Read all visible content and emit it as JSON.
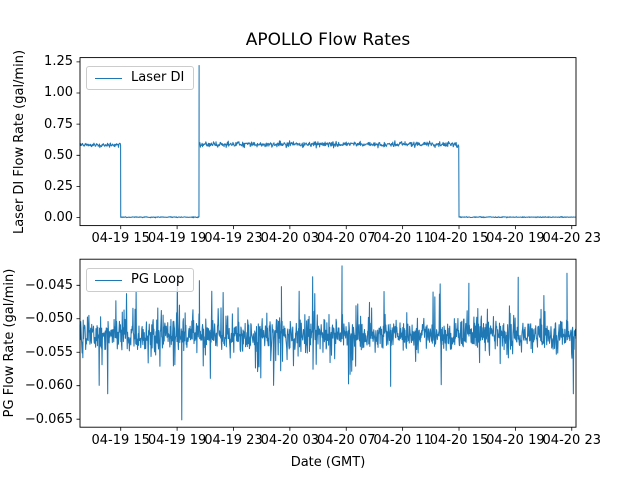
{
  "figure": {
    "title": "APOLLO Flow Rates",
    "background_color": "#ffffff",
    "series_color": "#1f77b4",
    "axis_color": "#000000"
  },
  "chart_data": [
    {
      "type": "line",
      "title": "APOLLO Flow Rates",
      "ylabel": "Laser DI Flow Rate (gal/min)",
      "xlabel": "",
      "legend": {
        "label": "Laser DI",
        "position": "upper left"
      },
      "line_color": "#1f77b4",
      "grid": false,
      "x_unit_note": "hours GMT relative to 04-19 00:00, read from shared date axis",
      "xlim": [
        12.11,
        47.3
      ],
      "ylim": [
        -0.064,
        1.284
      ],
      "yticks": [
        0.0,
        0.25,
        0.5,
        0.75,
        1.0,
        1.25
      ],
      "ytick_labels": [
        "0.00",
        "0.25",
        "0.50",
        "0.75",
        "1.00",
        "1.25"
      ],
      "xticks": [
        15,
        19,
        23,
        27,
        31,
        35,
        39,
        43,
        47
      ],
      "xtick_labels": [
        "04-19 15",
        "04-19 19",
        "04-19 23",
        "04-20 03",
        "04-20 07",
        "04-20 11",
        "04-20 15",
        "04-20 19",
        "04-20 23"
      ],
      "segments": [
        {
          "t_start": 12.11,
          "t_end": 15.0,
          "mean": 0.583,
          "noise": 0.008,
          "desc": "steady flow ~0.58 gal/min until 04-19 15:00"
        },
        {
          "t_start": 15.0,
          "t_end": 20.56,
          "mean": 0.004,
          "noise": 0.0018,
          "desc": "flow off ~0.00 gal/min"
        },
        {
          "t_start": 20.56,
          "t_end": 39.0,
          "mean": 0.588,
          "noise": 0.011,
          "desc": "steady flow ~0.59 gal/min until 04-20 15:00"
        },
        {
          "t_start": 39.0,
          "t_end": 47.3,
          "mean": 0.004,
          "noise": 0.0018,
          "desc": "flow off ~0.00 gal/min to end"
        }
      ],
      "spikes": [
        {
          "t": 20.56,
          "v": 1.22,
          "desc": "restart spike to ~1.22 gal/min at ~04-19 20:34"
        }
      ]
    },
    {
      "type": "line",
      "title": "",
      "ylabel": "PG Flow Rate (gal/min)",
      "xlabel": "Date (GMT)",
      "legend": {
        "label": "PG Loop",
        "position": "upper left"
      },
      "line_color": "#1f77b4",
      "grid": false,
      "xlim": [
        12.11,
        47.3
      ],
      "ylim": [
        -0.0662,
        -0.0411
      ],
      "yticks": [
        -0.065,
        -0.06,
        -0.055,
        -0.05,
        -0.045
      ],
      "ytick_labels": [
        "−0.065",
        "−0.060",
        "−0.055",
        "−0.050",
        "−0.045"
      ],
      "xticks": [
        15,
        19,
        23,
        27,
        31,
        35,
        39,
        43,
        47
      ],
      "xtick_labels": [
        "04-19 15",
        "04-19 19",
        "04-19 23",
        "04-20 03",
        "04-20 07",
        "04-20 11",
        "04-20 15",
        "04-20 19",
        "04-20 23"
      ],
      "noise_band": {
        "mean": -0.0525,
        "sigma": 0.0011,
        "spike_prob": 0.22,
        "spike_scale": 0.002,
        "up_clamp": -0.0437,
        "down_clamp": -0.0612,
        "desc": "dense noisy band ~-0.049 to -0.056 gal/min over whole span"
      },
      "spikes": [
        {
          "t": 19.33,
          "v": -0.0651,
          "desc": "large downward spike ~04-19 19:20"
        },
        {
          "t": 20.58,
          "v": -0.0443
        },
        {
          "t": 26.4,
          "v": -0.0452
        },
        {
          "t": 30.7,
          "v": -0.0421,
          "desc": "tallest upward spike ~04-20 06:42"
        },
        {
          "t": 31.27,
          "v": -0.0583
        },
        {
          "t": 34.15,
          "v": -0.0601
        },
        {
          "t": 39.7,
          "v": -0.0447
        },
        {
          "t": 43.2,
          "v": -0.0438
        },
        {
          "t": 46.66,
          "v": -0.0432
        }
      ]
    }
  ]
}
